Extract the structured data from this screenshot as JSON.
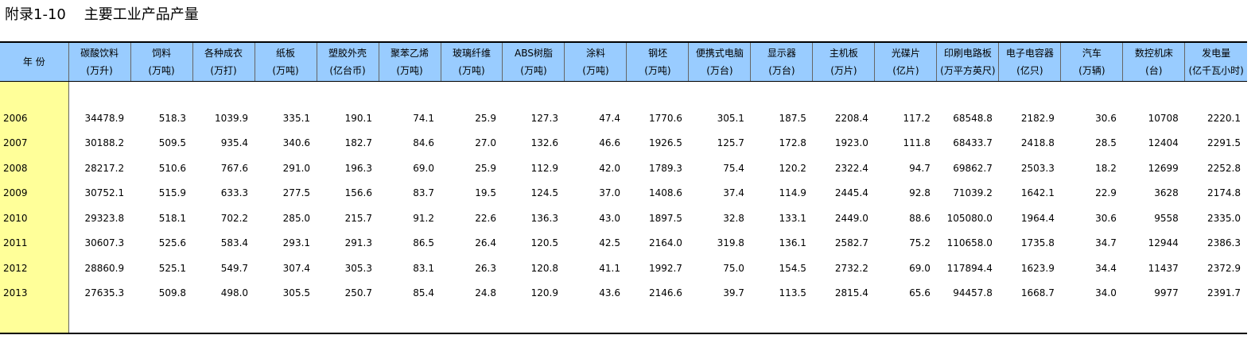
{
  "title": "附录1-10    主要工业产品产量",
  "year_header": "年 份",
  "columns": [
    {
      "name": "碳酸饮料",
      "unit": "(万升)"
    },
    {
      "name": "饲料",
      "unit": "(万吨)"
    },
    {
      "name": "各种成衣",
      "unit": "(万打)"
    },
    {
      "name": "纸板",
      "unit": "(万吨)"
    },
    {
      "name": "塑胶外壳",
      "unit": "(亿台币)"
    },
    {
      "name": "聚苯乙烯",
      "unit": "(万吨)"
    },
    {
      "name": "玻璃纤维",
      "unit": "(万吨)"
    },
    {
      "name": "ABS树脂",
      "unit": "(万吨)"
    },
    {
      "name": "涂料",
      "unit": "(万吨)"
    },
    {
      "name": "钢坯",
      "unit": "(万吨)"
    },
    {
      "name": "便携式电脑",
      "unit": "(万台)"
    },
    {
      "name": "显示器",
      "unit": "(万台)"
    },
    {
      "name": "主机板",
      "unit": "(万片)"
    },
    {
      "name": "光碟片",
      "unit": "(亿片)"
    },
    {
      "name": "印刷电路板",
      "unit": "(万平方英尺)"
    },
    {
      "name": "电子电容器",
      "unit": "(亿只)"
    },
    {
      "name": "汽车",
      "unit": "(万辆)"
    },
    {
      "name": "数控机床",
      "unit": "(台)"
    },
    {
      "name": "发电量",
      "unit": "(亿千瓦小时)"
    }
  ],
  "rows": [
    {
      "year": "2006",
      "values": [
        "34478.9",
        "518.3",
        "1039.9",
        "335.1",
        "190.1",
        "74.1",
        "25.9",
        "127.3",
        "47.4",
        "1770.6",
        "305.1",
        "187.5",
        "2208.4",
        "117.2",
        "68548.8",
        "2182.9",
        "30.6",
        "10708",
        "2220.1"
      ]
    },
    {
      "year": "2007",
      "values": [
        "30188.2",
        "509.5",
        "935.4",
        "340.6",
        "182.7",
        "84.6",
        "27.0",
        "132.6",
        "46.6",
        "1926.5",
        "125.7",
        "172.8",
        "1923.0",
        "111.8",
        "68433.7",
        "2418.8",
        "28.5",
        "12404",
        "2291.5"
      ]
    },
    {
      "year": "2008",
      "values": [
        "28217.2",
        "510.6",
        "767.6",
        "291.0",
        "196.3",
        "69.0",
        "25.9",
        "112.9",
        "42.0",
        "1789.3",
        "75.4",
        "120.2",
        "2322.4",
        "94.7",
        "69862.7",
        "2503.3",
        "18.2",
        "12699",
        "2252.8"
      ]
    },
    {
      "year": "2009",
      "values": [
        "30752.1",
        "515.9",
        "633.3",
        "277.5",
        "156.6",
        "83.7",
        "19.5",
        "124.5",
        "37.0",
        "1408.6",
        "37.4",
        "114.9",
        "2445.4",
        "92.8",
        "71039.2",
        "1642.1",
        "22.9",
        "3628",
        "2174.8"
      ]
    },
    {
      "year": "2010",
      "values": [
        "29323.8",
        "518.1",
        "702.2",
        "285.0",
        "215.7",
        "91.2",
        "22.6",
        "136.3",
        "43.0",
        "1897.5",
        "32.8",
        "133.1",
        "2449.0",
        "88.6",
        "105080.0",
        "1964.4",
        "30.6",
        "9558",
        "2335.0"
      ]
    },
    {
      "year": "2011",
      "values": [
        "30607.3",
        "525.6",
        "583.4",
        "293.1",
        "291.3",
        "86.5",
        "26.4",
        "120.5",
        "42.5",
        "2164.0",
        "319.8",
        "136.1",
        "2582.7",
        "75.2",
        "110658.0",
        "1735.8",
        "34.7",
        "12944",
        "2386.3"
      ]
    },
    {
      "year": "2012",
      "values": [
        "28860.9",
        "525.1",
        "549.7",
        "307.4",
        "305.3",
        "83.1",
        "26.3",
        "120.8",
        "41.1",
        "1992.7",
        "75.0",
        "154.5",
        "2732.2",
        "69.0",
        "117894.4",
        "1623.9",
        "34.4",
        "11437",
        "2372.9"
      ]
    },
    {
      "year": "2013",
      "values": [
        "27635.3",
        "509.8",
        "498.0",
        "305.5",
        "250.7",
        "85.4",
        "24.8",
        "120.9",
        "43.6",
        "2146.6",
        "39.7",
        "113.5",
        "2815.4",
        "65.6",
        "94457.8",
        "1668.7",
        "34.0",
        "9977",
        "2391.7"
      ]
    }
  ]
}
